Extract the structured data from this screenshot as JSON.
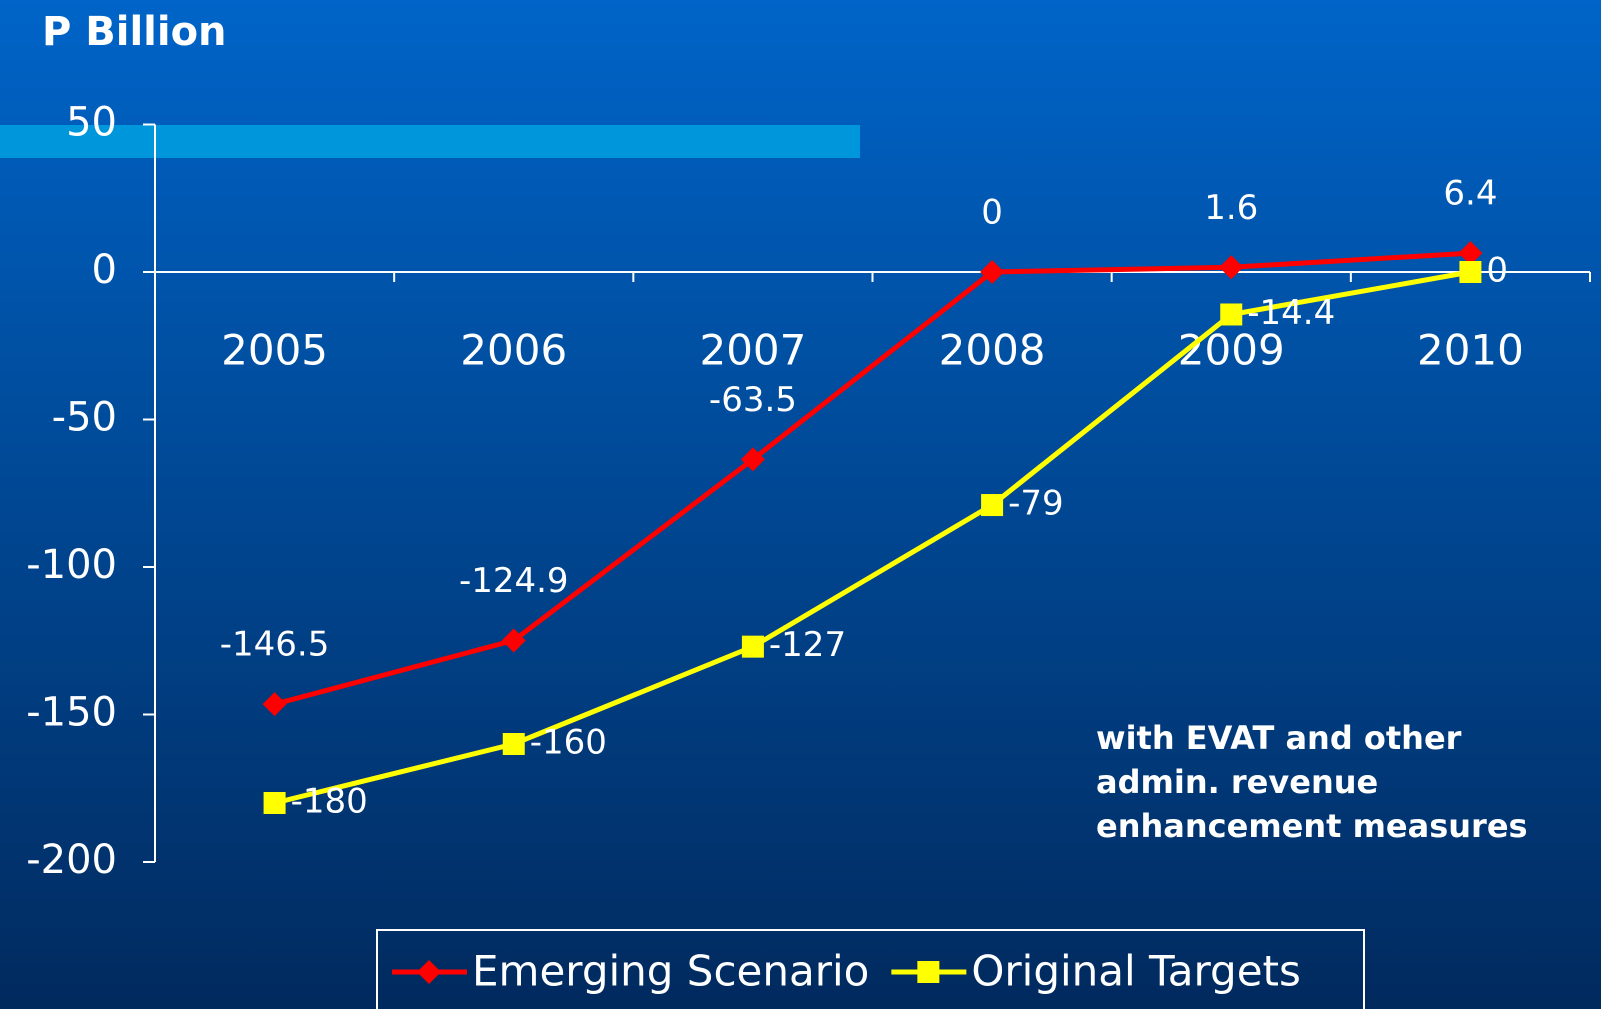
{
  "chart_data": {
    "type": "line",
    "y_label": "P Billion",
    "categories": [
      "2005",
      "2006",
      "2007",
      "2008",
      "2009",
      "2010"
    ],
    "series": [
      {
        "name": "Emerging Scenario",
        "color": "#ff0000",
        "marker": "diamond",
        "values": [
          -146.5,
          -124.9,
          -63.5,
          0,
          1.6,
          6.4
        ]
      },
      {
        "name": "Original Targets",
        "color": "#ffff00",
        "marker": "square",
        "values": [
          -180,
          -160,
          -127,
          -79,
          -14.4,
          0
        ]
      }
    ],
    "ylim": [
      -200,
      50
    ],
    "yticks": [
      50,
      0,
      -50,
      -100,
      -150,
      -200
    ],
    "annotation": [
      "with EVAT and other",
      "admin. revenue",
      "enhancement measures"
    ],
    "legend": "bottom"
  }
}
